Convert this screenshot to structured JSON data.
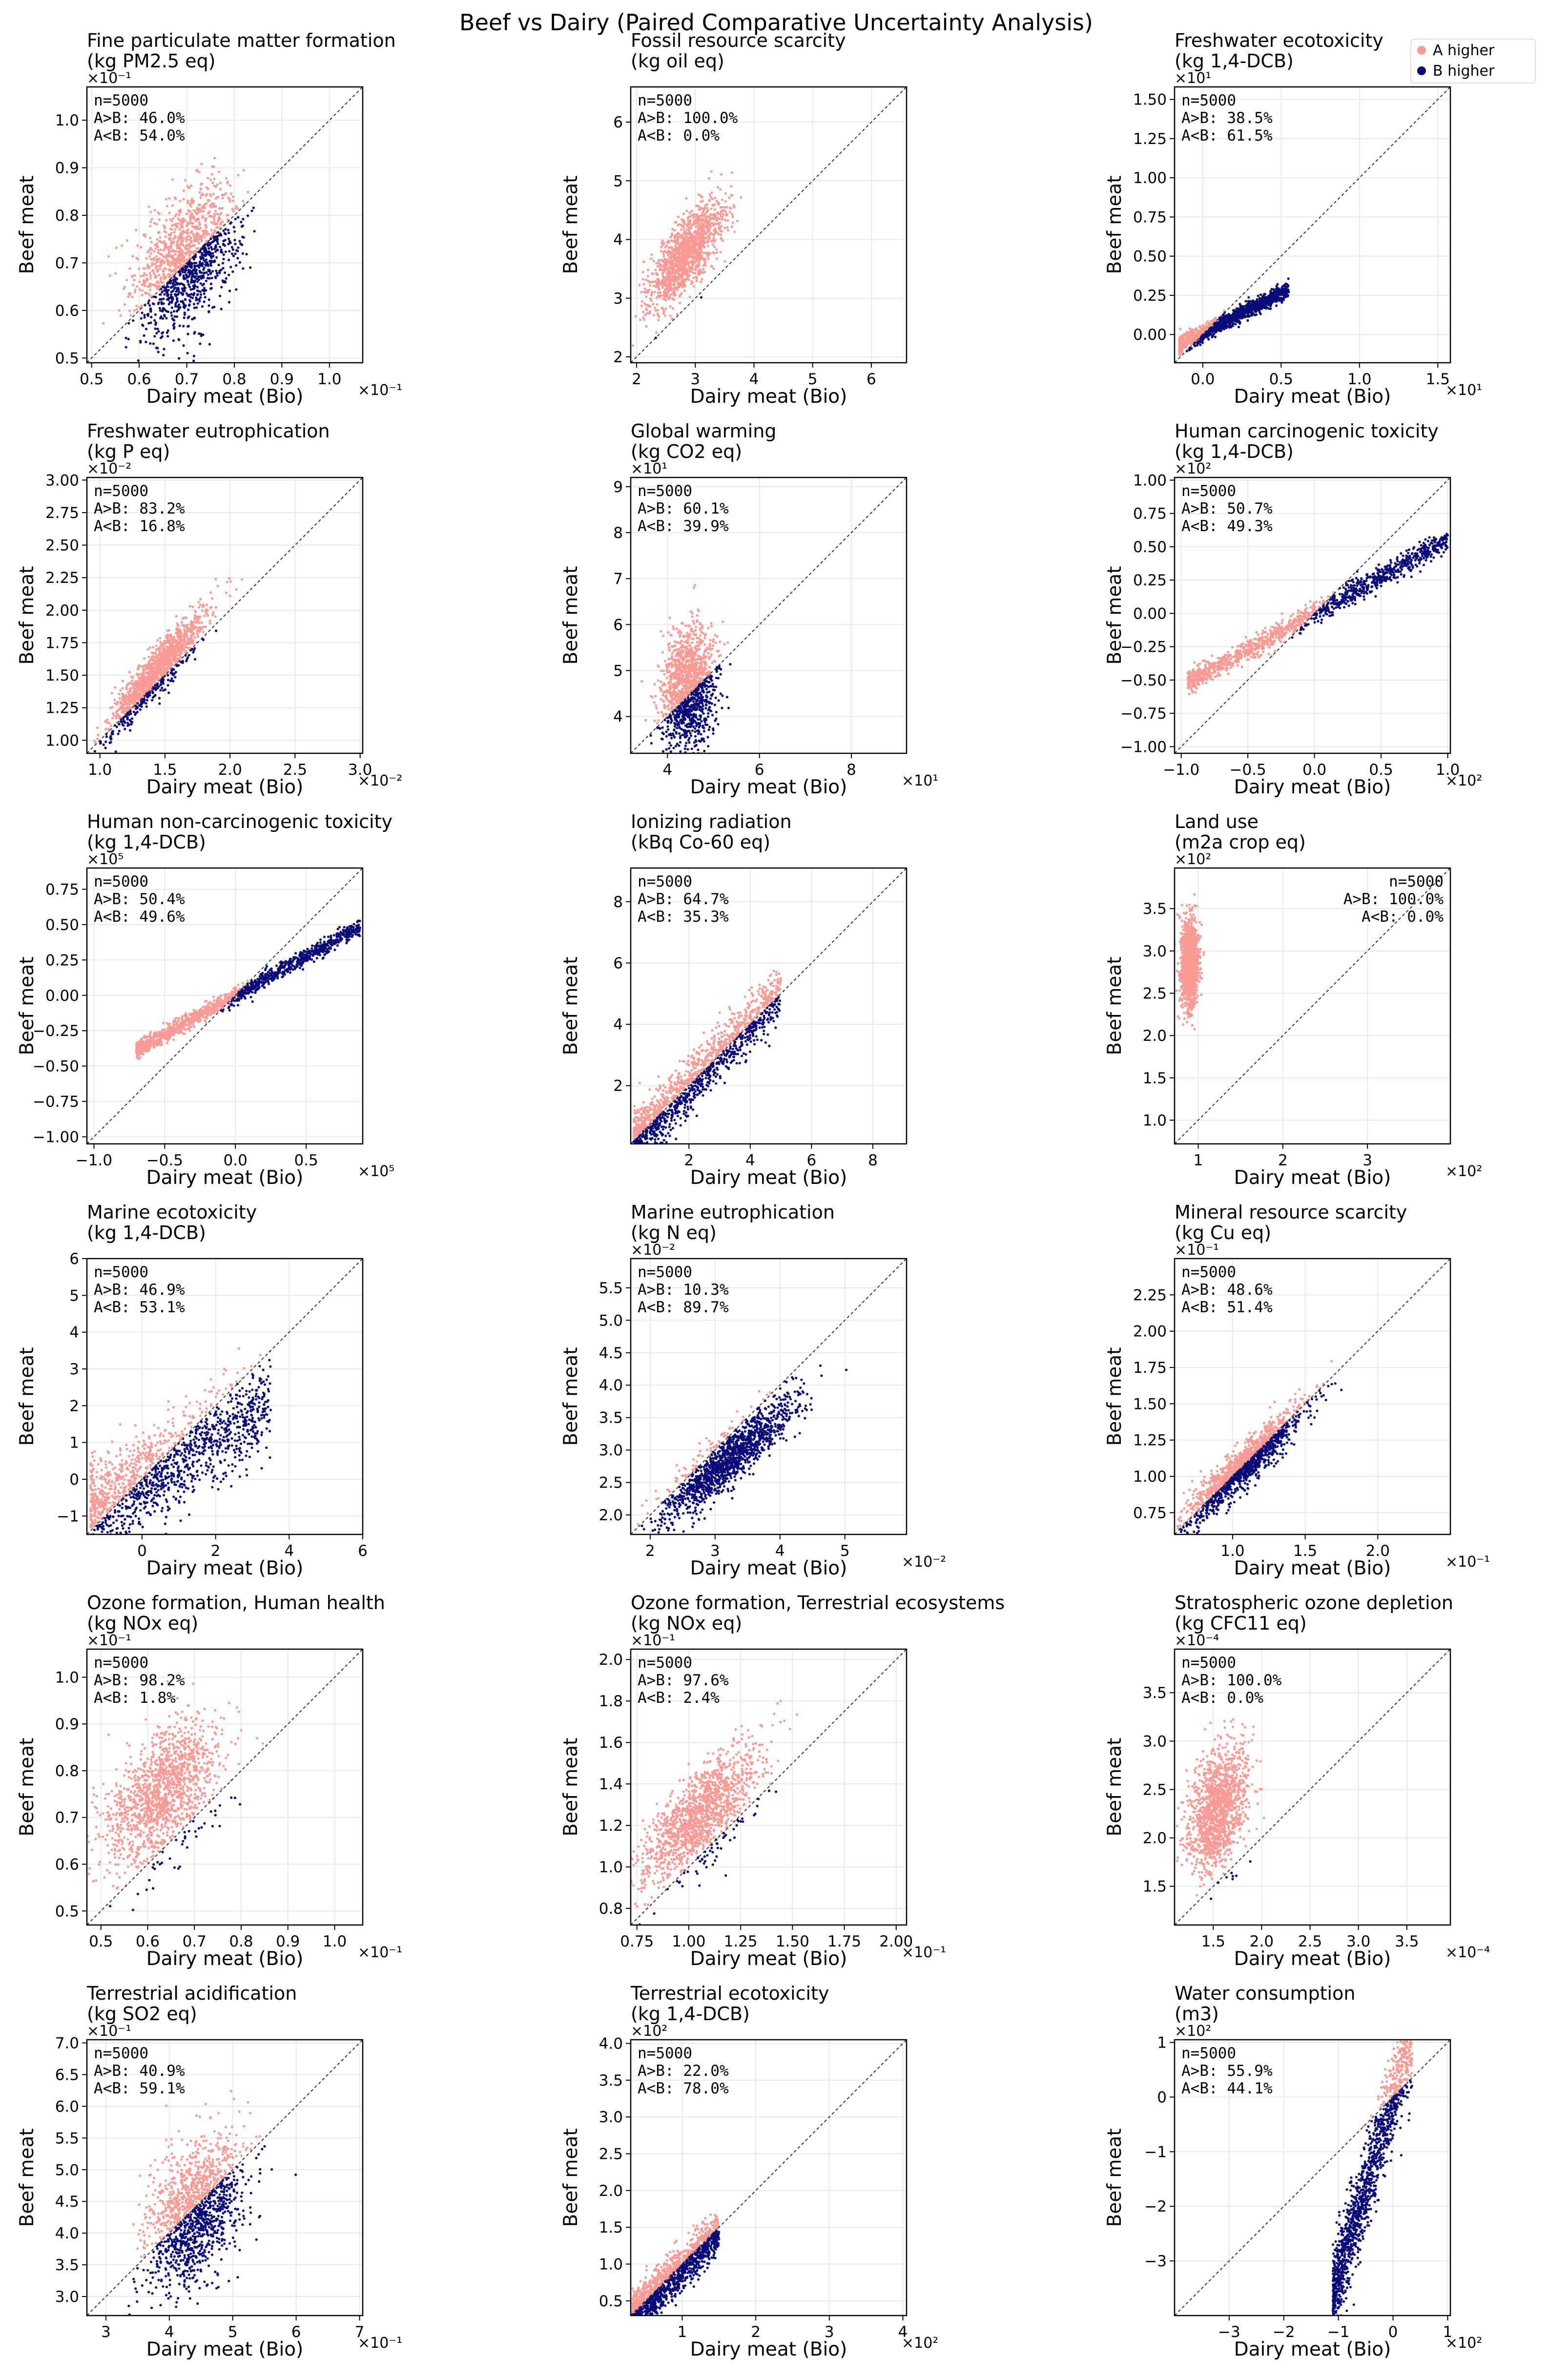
{
  "figure": {
    "title": "Beef vs Dairy (Paired Comparative Uncertainty Analysis)",
    "xlabel": "Dairy meat (Bio)",
    "ylabel": "Beef meat",
    "colors": {
      "a_higher": "#fa9a94",
      "b_higher": "#0a0a78",
      "diagonal": "#333333",
      "grid": "#e8e8e8"
    },
    "legend": {
      "position": "top-right",
      "items": [
        {
          "label": "A higher",
          "color": "#fa9a94"
        },
        {
          "label": "B higher",
          "color": "#0a0a78"
        }
      ]
    }
  },
  "chart_data": [
    {
      "type": "scatter",
      "title": "Fine particulate matter formation",
      "unit": "(kg PM2.5 eq)",
      "x_multiplier": "×10⁻¹",
      "y_multiplier": "×10⁻¹",
      "xlim": [
        0.49,
        1.07
      ],
      "ylim": [
        0.49,
        1.07
      ],
      "xticks": [
        "0.5",
        "0.6",
        "0.7",
        "0.8",
        "0.9",
        "1.0"
      ],
      "yticks": [
        "0.5",
        "0.6",
        "0.7",
        "0.8",
        "0.9",
        "1.0"
      ],
      "n": "n=5000",
      "a_gt_b": "A>B: 46.0%",
      "a_lt_b": "A<B: 54.0%",
      "stats_pos": "top-left",
      "cloud": {
        "type": "ellipse",
        "center": [
          0.7,
          0.71
        ],
        "sx": 0.055,
        "sy": 0.075,
        "rho": 0.45
      }
    },
    {
      "type": "scatter",
      "title": "Fossil resource scarcity",
      "unit": "(kg oil eq)",
      "x_multiplier": "",
      "y_multiplier": "",
      "xlim": [
        1.9,
        6.6
      ],
      "ylim": [
        1.9,
        6.6
      ],
      "xticks": [
        "2",
        "3",
        "4",
        "5",
        "6"
      ],
      "yticks": [
        "2",
        "3",
        "4",
        "5",
        "6"
      ],
      "n": "n=5000",
      "a_gt_b": "A>B: 100.0%",
      "a_lt_b": "A<B: 0.0%",
      "stats_pos": "top-left",
      "cloud": {
        "type": "ellipse",
        "center": [
          2.85,
          3.75
        ],
        "sx": 0.32,
        "sy": 0.45,
        "rho": 0.75
      }
    },
    {
      "type": "scatter",
      "title": "Freshwater ecotoxicity",
      "unit": "(kg 1,4-DCB)",
      "x_multiplier": "×10¹",
      "y_multiplier": "×10¹",
      "xlim": [
        -0.18,
        1.58
      ],
      "ylim": [
        -0.18,
        1.58
      ],
      "xticks": [
        "0.0",
        "0.5",
        "1.0",
        "1.5"
      ],
      "yticks": [
        "0.00",
        "0.25",
        "0.50",
        "0.75",
        "1.00",
        "1.25",
        "1.50"
      ],
      "n": "n=5000",
      "a_gt_b": "A>B: 38.5%",
      "a_lt_b": "A<B: 61.5%",
      "stats_pos": "top-left",
      "cloud": {
        "type": "line",
        "x_range": [
          -0.15,
          0.55
        ],
        "slope": 0.5,
        "intercept": 0.01,
        "spread": 0.015
      }
    },
    {
      "type": "scatter",
      "title": "Freshwater eutrophication",
      "unit": "(kg P eq)",
      "x_multiplier": "×10⁻²",
      "y_multiplier": "×10⁻²",
      "xlim": [
        0.9,
        3.02
      ],
      "ylim": [
        0.9,
        3.02
      ],
      "xticks": [
        "1.0",
        "1.5",
        "2.0",
        "2.5",
        "3.0"
      ],
      "yticks": [
        "1.00",
        "1.25",
        "1.50",
        "1.75",
        "2.00",
        "2.25",
        "2.50",
        "2.75",
        "3.00"
      ],
      "n": "n=5000",
      "a_gt_b": "A>B: 83.2%",
      "a_lt_b": "A<B: 16.8%",
      "stats_pos": "top-left",
      "cloud": {
        "type": "ellipse",
        "center": [
          1.45,
          1.55
        ],
        "sx": 0.18,
        "sy": 0.22,
        "rho": 0.92
      }
    },
    {
      "type": "scatter",
      "title": "Global warming",
      "unit": "(kg CO2 eq)",
      "x_multiplier": "×10¹",
      "y_multiplier": "×10¹",
      "xlim": [
        3.2,
        9.2
      ],
      "ylim": [
        3.2,
        9.2
      ],
      "xticks": [
        "4",
        "6",
        "8"
      ],
      "yticks": [
        "4",
        "5",
        "6",
        "7",
        "8",
        "9"
      ],
      "n": "n=5000",
      "a_gt_b": "A>B: 60.1%",
      "a_lt_b": "A<B: 39.9%",
      "stats_pos": "top-left",
      "cloud": {
        "type": "ellipse",
        "center": [
          4.45,
          4.65
        ],
        "sx": 0.3,
        "sy": 0.65,
        "rho": 0.15
      }
    },
    {
      "type": "scatter",
      "title": "Human carcinogenic toxicity",
      "unit": "(kg 1,4-DCB)",
      "x_multiplier": "×10²",
      "y_multiplier": "×10²",
      "xlim": [
        -1.05,
        1.02
      ],
      "ylim": [
        -1.05,
        1.02
      ],
      "xticks": [
        "−1.0",
        "−0.5",
        "0.0",
        "0.5",
        "1.0"
      ],
      "yticks": [
        "−1.00",
        "−0.75",
        "−0.50",
        "−0.25",
        "0.00",
        "0.25",
        "0.50",
        "0.75",
        "1.00"
      ],
      "n": "n=5000",
      "a_gt_b": "A>B: 50.7%",
      "a_lt_b": "A<B: 49.3%",
      "stats_pos": "top-left",
      "cloud": {
        "type": "line",
        "x_range": [
          -0.95,
          1.0
        ],
        "slope": 0.55,
        "intercept": 0.0,
        "spread": 0.02
      }
    },
    {
      "type": "scatter",
      "title": "Human non-carcinogenic toxicity",
      "unit": "(kg 1,4-DCB)",
      "x_multiplier": "×10⁵",
      "y_multiplier": "×10⁵",
      "xlim": [
        -1.05,
        0.9
      ],
      "ylim": [
        -1.05,
        0.9
      ],
      "xticks": [
        "−1.0",
        "−0.5",
        "0.0",
        "0.5"
      ],
      "yticks": [
        "−1.00",
        "−0.75",
        "−0.50",
        "−0.25",
        "0.00",
        "0.25",
        "0.50",
        "0.75"
      ],
      "n": "n=5000",
      "a_gt_b": "A>B: 50.4%",
      "a_lt_b": "A<B: 49.6%",
      "stats_pos": "top-left",
      "cloud": {
        "type": "line",
        "x_range": [
          -0.7,
          0.88
        ],
        "slope": 0.55,
        "intercept": 0.0,
        "spread": 0.015
      }
    },
    {
      "type": "scatter",
      "title": "Ionizing radiation",
      "unit": "(kBq Co-60 eq)",
      "x_multiplier": "",
      "y_multiplier": "",
      "xlim": [
        0.1,
        9.1
      ],
      "ylim": [
        0.1,
        9.1
      ],
      "xticks": [
        "2",
        "4",
        "6",
        "8"
      ],
      "yticks": [
        "2",
        "4",
        "6",
        "8"
      ],
      "n": "n=5000",
      "a_gt_b": "A>B: 64.7%",
      "a_lt_b": "A<B: 35.3%",
      "stats_pos": "top-left",
      "cloud": {
        "type": "line",
        "x_range": [
          0.2,
          5.0
        ],
        "slope": 1.0,
        "intercept": 0.02,
        "spread": 0.05
      }
    },
    {
      "type": "scatter",
      "title": "Land use",
      "unit": "(m2a crop eq)",
      "x_multiplier": "×10²",
      "y_multiplier": "×10²",
      "xlim": [
        0.72,
        3.98
      ],
      "ylim": [
        0.72,
        3.98
      ],
      "xticks": [
        "1",
        "2",
        "3"
      ],
      "yticks": [
        "1.0",
        "1.5",
        "2.0",
        "2.5",
        "3.0",
        "3.5"
      ],
      "n": "n=5000",
      "a_gt_b": "A>B: 100.0%",
      "a_lt_b": "A<B: 0.0%",
      "stats_pos": "top-right",
      "cloud": {
        "type": "ellipse",
        "center": [
          0.9,
          2.85
        ],
        "sx": 0.05,
        "sy": 0.25,
        "rho": 0.1
      }
    },
    {
      "type": "scatter",
      "title": "Marine ecotoxicity",
      "unit": "(kg 1,4-DCB)",
      "x_multiplier": "",
      "y_multiplier": "",
      "xlim": [
        -1.5,
        6.0
      ],
      "ylim": [
        -1.5,
        6.0
      ],
      "xticks": [
        "0",
        "2",
        "4",
        "6"
      ],
      "yticks": [
        "−1",
        "0",
        "1",
        "2",
        "3",
        "4",
        "5",
        "6"
      ],
      "n": "n=5000",
      "a_gt_b": "A>B: 46.9%",
      "a_lt_b": "A<B: 53.1%",
      "stats_pos": "top-left",
      "cloud": {
        "type": "line",
        "x_range": [
          -1.4,
          3.5
        ],
        "slope": 0.6,
        "intercept": 0.0,
        "spread": 0.08
      }
    },
    {
      "type": "scatter",
      "title": "Marine eutrophication",
      "unit": "(kg N eq)",
      "x_multiplier": "×10⁻²",
      "y_multiplier": "×10⁻²",
      "xlim": [
        1.7,
        5.95
      ],
      "ylim": [
        1.7,
        5.95
      ],
      "xticks": [
        "2",
        "3",
        "4",
        "5"
      ],
      "yticks": [
        "2.0",
        "2.5",
        "3.0",
        "3.5",
        "4.0",
        "4.5",
        "5.0",
        "5.5"
      ],
      "n": "n=5000",
      "a_gt_b": "A>B: 10.3%",
      "a_lt_b": "A<B: 89.7%",
      "stats_pos": "top-left",
      "cloud": {
        "type": "ellipse",
        "center": [
          3.2,
          2.85
        ],
        "sx": 0.5,
        "sy": 0.45,
        "rho": 0.9
      }
    },
    {
      "type": "scatter",
      "title": "Mineral resource scarcity",
      "unit": "(kg Cu eq)",
      "x_multiplier": "×10⁻¹",
      "y_multiplier": "×10⁻¹",
      "xlim": [
        0.6,
        2.5
      ],
      "ylim": [
        0.6,
        2.5
      ],
      "xticks": [
        "1.0",
        "1.5",
        "2.0"
      ],
      "yticks": [
        "0.75",
        "1.00",
        "1.25",
        "1.50",
        "1.75",
        "2.00",
        "2.25"
      ],
      "n": "n=5000",
      "a_gt_b": "A>B: 48.6%",
      "a_lt_b": "A<B: 51.4%",
      "stats_pos": "top-left",
      "cloud": {
        "type": "ellipse",
        "center": [
          1.08,
          1.08
        ],
        "sx": 0.2,
        "sy": 0.2,
        "rho": 0.93
      }
    },
    {
      "type": "scatter",
      "title": "Ozone formation, Human health",
      "unit": "(kg NOx eq)",
      "x_multiplier": "×10⁻¹",
      "y_multiplier": "×10⁻¹",
      "xlim": [
        0.47,
        1.06
      ],
      "ylim": [
        0.47,
        1.06
      ],
      "xticks": [
        "0.5",
        "0.6",
        "0.7",
        "0.8",
        "0.9",
        "1.0"
      ],
      "yticks": [
        "0.5",
        "0.6",
        "0.7",
        "0.8",
        "0.9",
        "1.0"
      ],
      "n": "n=5000",
      "a_gt_b": "A>B: 98.2%",
      "a_lt_b": "A<B: 1.8%",
      "stats_pos": "top-left",
      "cloud": {
        "type": "ellipse",
        "center": [
          0.63,
          0.75
        ],
        "sx": 0.06,
        "sy": 0.075,
        "rho": 0.55
      }
    },
    {
      "type": "scatter",
      "title": "Ozone formation, Terrestrial ecosystems",
      "unit": "(kg NOx eq)",
      "x_multiplier": "×10⁻¹",
      "y_multiplier": "×10⁻¹",
      "xlim": [
        0.72,
        2.05
      ],
      "ylim": [
        0.72,
        2.05
      ],
      "xticks": [
        "0.75",
        "1.00",
        "1.25",
        "1.50",
        "1.75",
        "2.00"
      ],
      "yticks": [
        "0.8",
        "1.0",
        "1.2",
        "1.4",
        "1.6",
        "1.8",
        "2.0"
      ],
      "n": "n=5000",
      "a_gt_b": "A>B: 97.6%",
      "a_lt_b": "A<B: 2.4%",
      "stats_pos": "top-left",
      "cloud": {
        "type": "ellipse",
        "center": [
          1.05,
          1.25
        ],
        "sx": 0.14,
        "sy": 0.16,
        "rho": 0.75
      }
    },
    {
      "type": "scatter",
      "title": "Stratospheric ozone depletion",
      "unit": "(kg CFC11 eq)",
      "x_multiplier": "×10⁻⁴",
      "y_multiplier": "×10⁻⁴",
      "xlim": [
        1.1,
        3.95
      ],
      "ylim": [
        1.1,
        3.95
      ],
      "xticks": [
        "1.5",
        "2.0",
        "2.5",
        "3.0",
        "3.5"
      ],
      "yticks": [
        "1.5",
        "2.0",
        "2.5",
        "3.0",
        "3.5"
      ],
      "n": "n=5000",
      "a_gt_b": "A>B: 100.0%",
      "a_lt_b": "A<B: 0.0%",
      "stats_pos": "top-left",
      "cloud": {
        "type": "ellipse",
        "center": [
          1.55,
          2.3
        ],
        "sx": 0.15,
        "sy": 0.32,
        "rho": 0.4
      }
    },
    {
      "type": "scatter",
      "title": "Terrestrial acidification",
      "unit": "(kg SO2 eq)",
      "x_multiplier": "×10⁻¹",
      "y_multiplier": "×10⁻¹",
      "xlim": [
        2.7,
        7.05
      ],
      "ylim": [
        2.7,
        7.05
      ],
      "xticks": [
        "3",
        "4",
        "5",
        "6",
        "7"
      ],
      "yticks": [
        "3.0",
        "3.5",
        "4.0",
        "4.5",
        "5.0",
        "5.5",
        "6.0",
        "6.5",
        "7.0"
      ],
      "n": "n=5000",
      "a_gt_b": "A>B: 40.9%",
      "a_lt_b": "A<B: 59.1%",
      "stats_pos": "top-left",
      "cloud": {
        "type": "ellipse",
        "center": [
          4.4,
          4.3
        ],
        "sx": 0.38,
        "sy": 0.6,
        "rho": 0.4
      }
    },
    {
      "type": "scatter",
      "title": "Terrestrial ecotoxicity",
      "unit": "(kg 1,4-DCB)",
      "x_multiplier": "×10²",
      "y_multiplier": "×10²",
      "xlim": [
        0.3,
        4.05
      ],
      "ylim": [
        0.3,
        4.05
      ],
      "xticks": [
        "1",
        "2",
        "3",
        "4"
      ],
      "yticks": [
        "0.5",
        "1.0",
        "1.5",
        "2.0",
        "2.5",
        "3.0",
        "3.5",
        "4.0"
      ],
      "n": "n=5000",
      "a_gt_b": "A>B: 22.0%",
      "a_lt_b": "A<B: 78.0%",
      "stats_pos": "top-left",
      "cloud": {
        "type": "line",
        "x_range": [
          0.32,
          1.5
        ],
        "slope": 0.95,
        "intercept": 0.0,
        "spread": 0.04
      }
    },
    {
      "type": "scatter",
      "title": "Water consumption",
      "unit": "(m3)",
      "x_multiplier": "×10²",
      "y_multiplier": "×10²",
      "xlim": [
        -4.0,
        1.05
      ],
      "ylim": [
        -4.0,
        1.05
      ],
      "xticks": [
        "−3",
        "−2",
        "−1",
        "0",
        "1"
      ],
      "yticks": [
        "−3",
        "−2",
        "−1",
        "0",
        "1"
      ],
      "n": "n=5000",
      "a_gt_b": "A>B: 55.9%",
      "a_lt_b": "A<B: 44.1%",
      "stats_pos": "top-left",
      "cloud": {
        "type": "line",
        "x_range": [
          -1.1,
          0.35
        ],
        "slope": 3.2,
        "intercept": -0.05,
        "spread": 0.08
      }
    }
  ]
}
